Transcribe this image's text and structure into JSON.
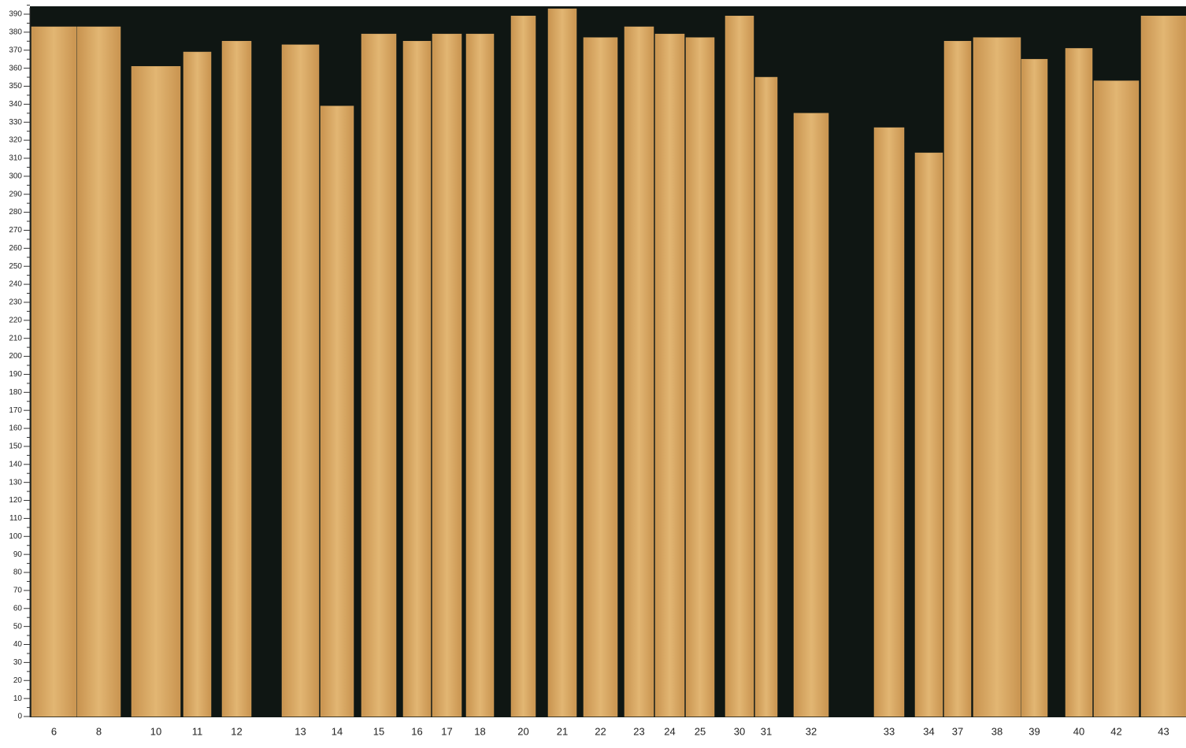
{
  "chart_data": {
    "type": "bar",
    "categories": [
      "6",
      "8",
      "10",
      "11",
      "12",
      "13",
      "14",
      "15",
      "16",
      "17",
      "18",
      "20",
      "21",
      "22",
      "23",
      "24",
      "25",
      "30",
      "31",
      "32",
      "33",
      "34",
      "37",
      "38",
      "39",
      "40",
      "42",
      "43"
    ],
    "values": [
      383,
      383,
      361,
      369,
      375,
      373,
      339,
      379,
      375,
      379,
      379,
      389,
      393,
      377,
      383,
      379,
      377,
      389,
      355,
      335,
      327,
      313,
      375,
      377,
      365,
      371,
      353,
      389
    ],
    "color": "#d8a763",
    "ylim": [
      0,
      390
    ],
    "yticks": [
      0,
      10,
      20,
      30,
      40,
      50,
      60,
      70,
      80,
      90,
      100,
      110,
      120,
      130,
      140,
      150,
      160,
      170,
      180,
      190,
      200,
      210,
      220,
      230,
      240,
      250,
      260,
      270,
      280,
      290,
      300,
      310,
      320,
      330,
      340,
      350,
      360,
      370,
      380,
      390
    ]
  }
}
